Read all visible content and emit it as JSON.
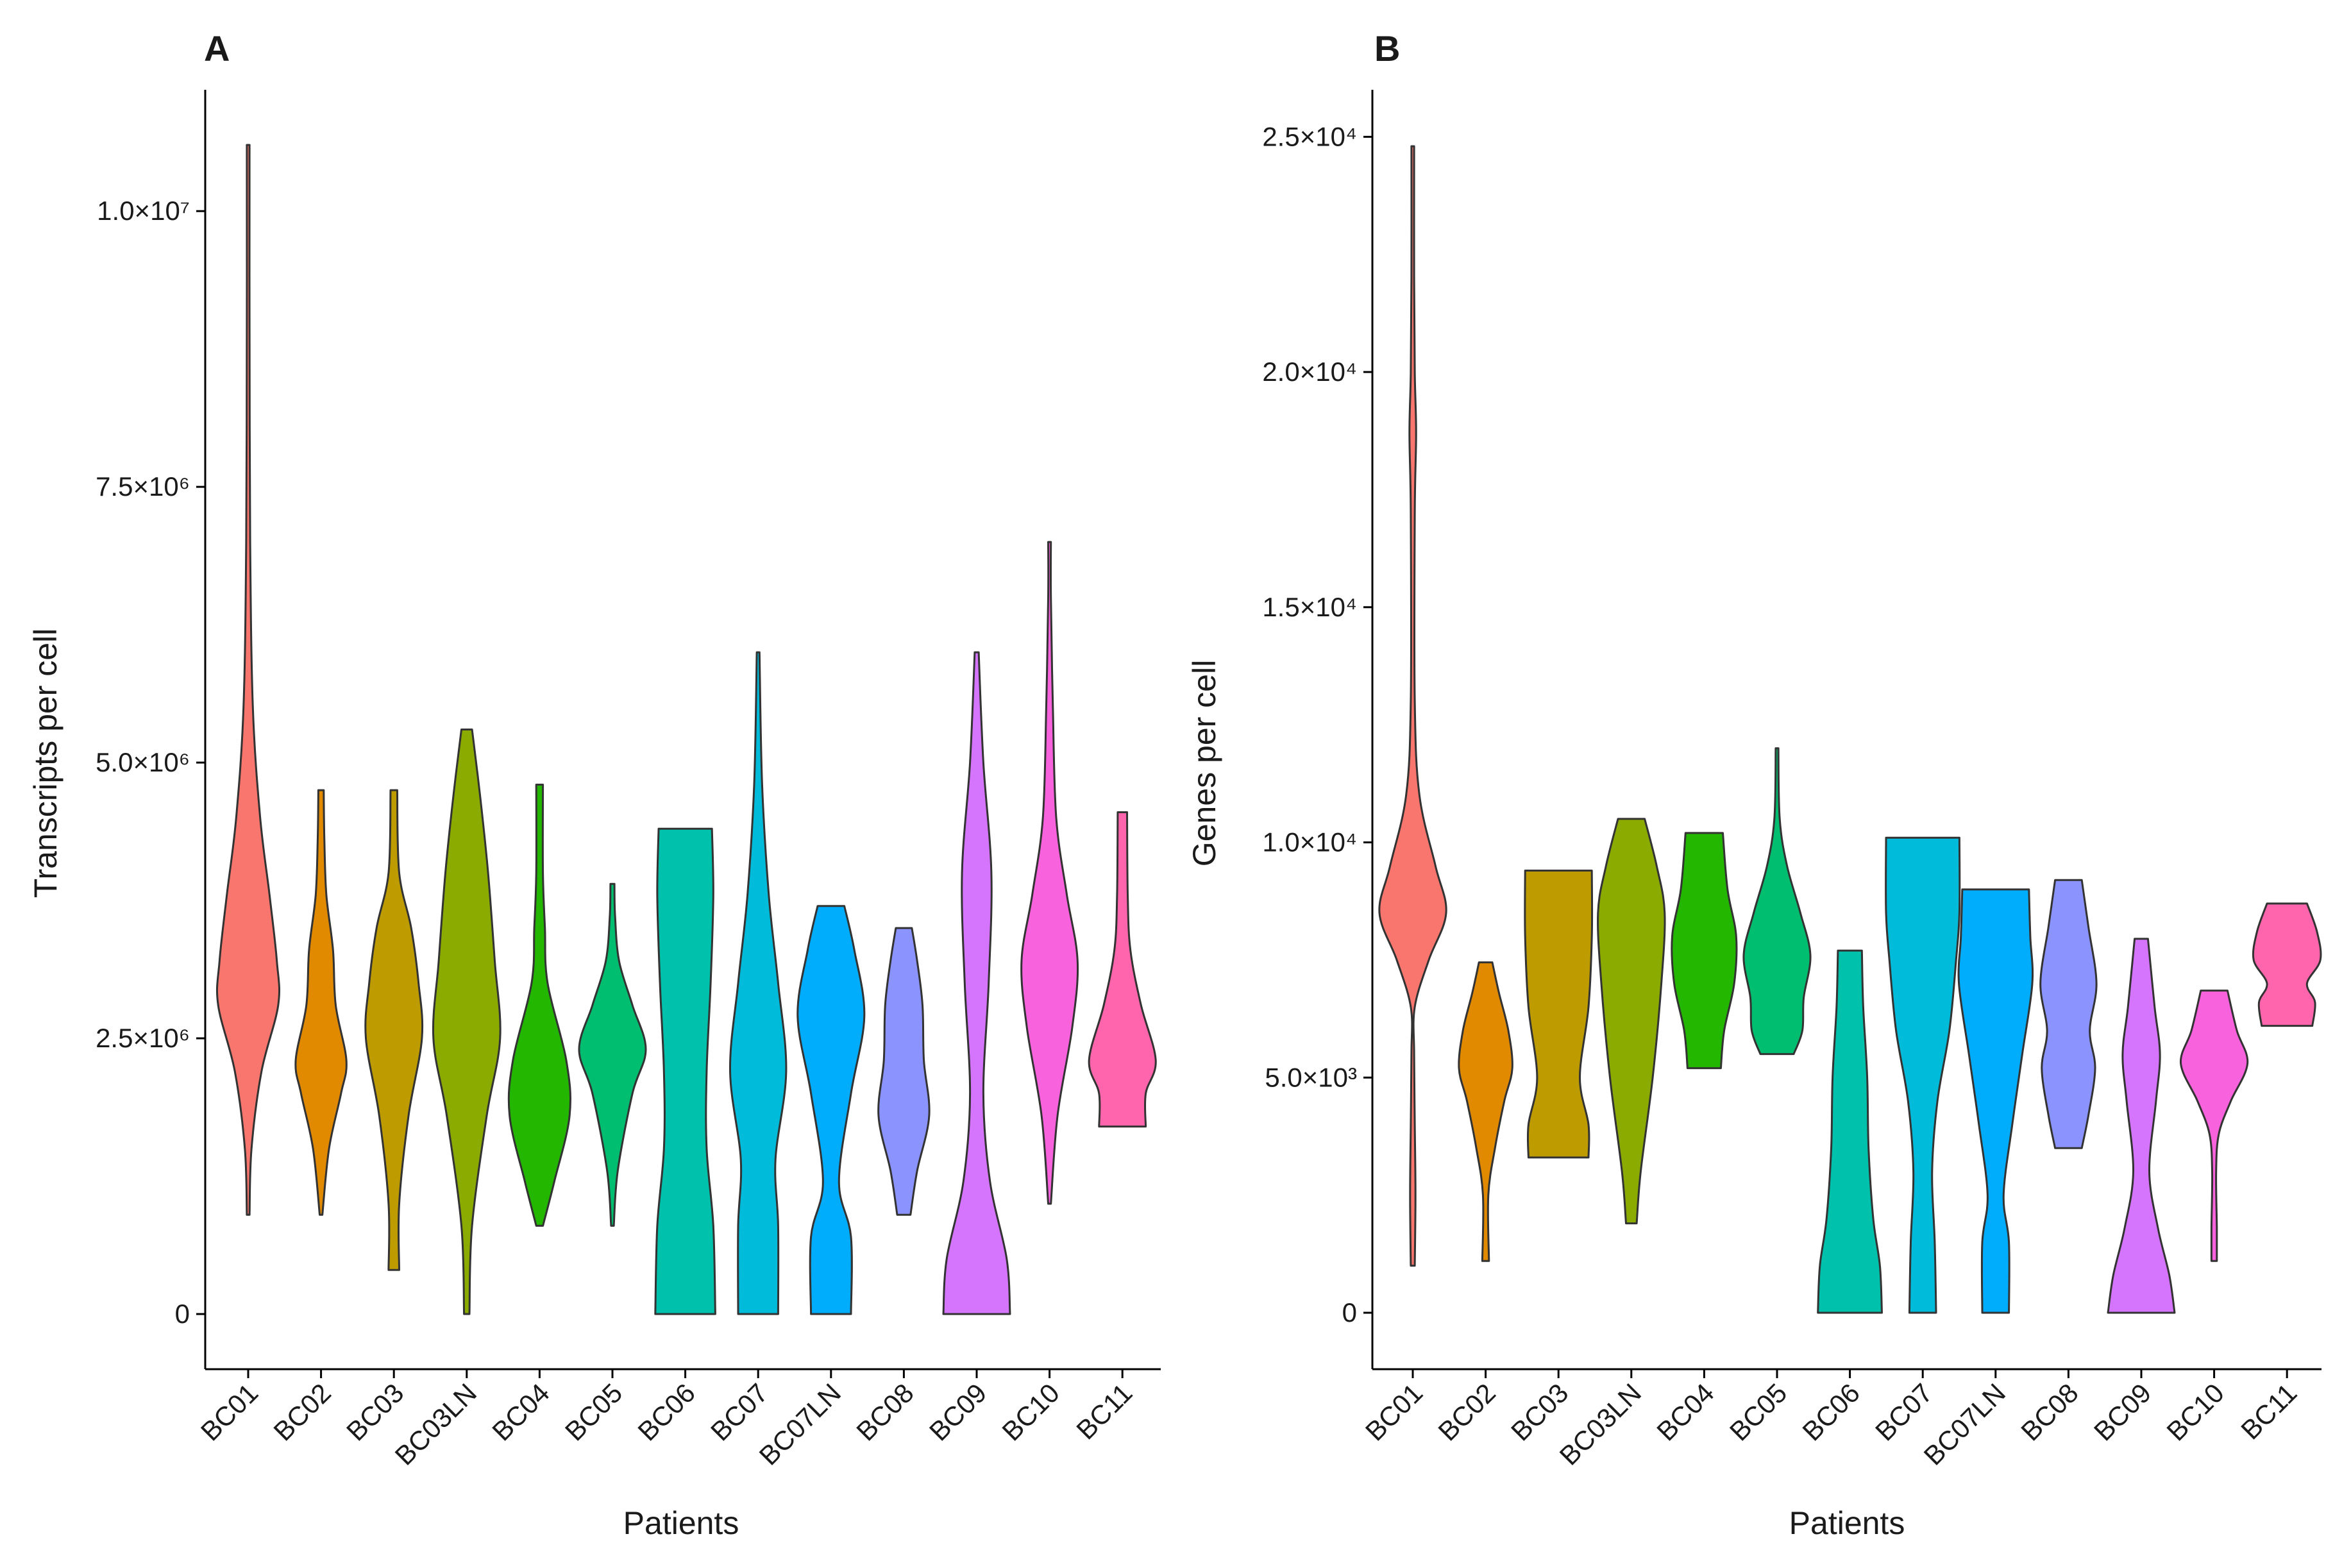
{
  "chart_data": [
    {
      "type": "violin",
      "panel": "A",
      "xlabel": "Patients",
      "ylabel": "Transcripts per cell",
      "ylim": [
        -500000,
        11100000
      ],
      "yticks": [
        0,
        2500000,
        5000000,
        7500000,
        10000000
      ],
      "ytick_labels": [
        "0",
        "2.5×10⁶",
        "5.0×10⁶",
        "7.5×10⁶",
        "1.0×10⁷"
      ],
      "categories": [
        "BC01",
        "BC02",
        "BC03",
        "BC03LN",
        "BC04",
        "BC05",
        "BC06",
        "BC07",
        "BC07LN",
        "BC08",
        "BC09",
        "BC10",
        "BC11"
      ],
      "colors": [
        "#F8766D",
        "#E18A00",
        "#BE9C00",
        "#8CAB00",
        "#24B700",
        "#00BE70",
        "#00C1AB",
        "#00BBDA",
        "#00ACFC",
        "#8B93FF",
        "#D575FE",
        "#F962DD",
        "#FF65AC"
      ],
      "violins": [
        {
          "name": "BC01",
          "min": 900000,
          "max": 10600000,
          "shape": [
            [
              900000,
              0.02
            ],
            [
              1500000,
              0.05
            ],
            [
              2200000,
              0.2
            ],
            [
              2800000,
              0.45
            ],
            [
              3200000,
              0.43
            ],
            [
              3800000,
              0.32
            ],
            [
              4500000,
              0.18
            ],
            [
              5500000,
              0.07
            ],
            [
              7000000,
              0.03
            ],
            [
              9000000,
              0.02
            ],
            [
              10600000,
              0.02
            ]
          ]
        },
        {
          "name": "BC02",
          "min": 900000,
          "max": 4750000,
          "shape": [
            [
              900000,
              0.02
            ],
            [
              1500000,
              0.12
            ],
            [
              2000000,
              0.3
            ],
            [
              2300000,
              0.38
            ],
            [
              2800000,
              0.22
            ],
            [
              3300000,
              0.18
            ],
            [
              3800000,
              0.08
            ],
            [
              4300000,
              0.05
            ],
            [
              4750000,
              0.04
            ]
          ]
        },
        {
          "name": "BC03",
          "min": 400000,
          "max": 4750000,
          "shape": [
            [
              400000,
              0.08
            ],
            [
              1000000,
              0.08
            ],
            [
              1800000,
              0.22
            ],
            [
              2500000,
              0.42
            ],
            [
              3000000,
              0.37
            ],
            [
              3500000,
              0.26
            ],
            [
              4000000,
              0.08
            ],
            [
              4750000,
              0.05
            ]
          ]
        },
        {
          "name": "BC03LN",
          "min": 0,
          "max": 5300000,
          "shape": [
            [
              0,
              0.04
            ],
            [
              800000,
              0.08
            ],
            [
              1800000,
              0.3
            ],
            [
              2500000,
              0.5
            ],
            [
              3200000,
              0.42
            ],
            [
              4000000,
              0.32
            ],
            [
              4700000,
              0.2
            ],
            [
              5300000,
              0.08
            ]
          ]
        },
        {
          "name": "BC04",
          "min": 800000,
          "max": 4800000,
          "shape": [
            [
              800000,
              0.05
            ],
            [
              1200000,
              0.22
            ],
            [
              1800000,
              0.45
            ],
            [
              2300000,
              0.4
            ],
            [
              3000000,
              0.12
            ],
            [
              3500000,
              0.08
            ],
            [
              4000000,
              0.05
            ],
            [
              4800000,
              0.05
            ]
          ]
        },
        {
          "name": "BC05",
          "min": 800000,
          "max": 3900000,
          "shape": [
            [
              800000,
              0.02
            ],
            [
              1300000,
              0.08
            ],
            [
              2000000,
              0.3
            ],
            [
              2400000,
              0.5
            ],
            [
              2800000,
              0.3
            ],
            [
              3200000,
              0.1
            ],
            [
              3600000,
              0.04
            ],
            [
              3900000,
              0.03
            ]
          ]
        },
        {
          "name": "BC06",
          "min": 0,
          "max": 4400000,
          "shape": [
            [
              0,
              0.45
            ],
            [
              800000,
              0.42
            ],
            [
              1500000,
              0.32
            ],
            [
              2200000,
              0.32
            ],
            [
              3000000,
              0.38
            ],
            [
              3800000,
              0.42
            ],
            [
              4400000,
              0.4
            ]
          ]
        },
        {
          "name": "BC07",
          "min": 0,
          "max": 6000000,
          "shape": [
            [
              0,
              0.3
            ],
            [
              800000,
              0.3
            ],
            [
              1400000,
              0.26
            ],
            [
              2200000,
              0.42
            ],
            [
              3000000,
              0.3
            ],
            [
              3800000,
              0.16
            ],
            [
              4800000,
              0.06
            ],
            [
              6000000,
              0.02
            ]
          ]
        },
        {
          "name": "BC07LN",
          "min": 0,
          "max": 3700000,
          "shape": [
            [
              0,
              0.3
            ],
            [
              700000,
              0.3
            ],
            [
              1200000,
              0.12
            ],
            [
              2000000,
              0.3
            ],
            [
              2700000,
              0.5
            ],
            [
              3300000,
              0.35
            ],
            [
              3700000,
              0.2
            ]
          ]
        },
        {
          "name": "BC08",
          "min": 900000,
          "max": 3500000,
          "shape": [
            [
              900000,
              0.1
            ],
            [
              1300000,
              0.2
            ],
            [
              1800000,
              0.38
            ],
            [
              2300000,
              0.3
            ],
            [
              2800000,
              0.28
            ],
            [
              3200000,
              0.2
            ],
            [
              3500000,
              0.12
            ]
          ]
        },
        {
          "name": "BC09",
          "min": 0,
          "max": 6000000,
          "shape": [
            [
              0,
              0.5
            ],
            [
              500000,
              0.45
            ],
            [
              1200000,
              0.2
            ],
            [
              2000000,
              0.1
            ],
            [
              3000000,
              0.18
            ],
            [
              4000000,
              0.22
            ],
            [
              5000000,
              0.1
            ],
            [
              6000000,
              0.03
            ]
          ]
        },
        {
          "name": "BC10",
          "min": 1000000,
          "max": 7000000,
          "shape": [
            [
              1000000,
              0.02
            ],
            [
              1800000,
              0.12
            ],
            [
              2600000,
              0.34
            ],
            [
              3200000,
              0.42
            ],
            [
              3800000,
              0.26
            ],
            [
              4500000,
              0.1
            ],
            [
              5500000,
              0.05
            ],
            [
              6500000,
              0.02
            ],
            [
              7000000,
              0.02
            ]
          ]
        },
        {
          "name": "BC11",
          "min": 1700000,
          "max": 4550000,
          "shape": [
            [
              1700000,
              0.35
            ],
            [
              2000000,
              0.35
            ],
            [
              2300000,
              0.5
            ],
            [
              2800000,
              0.28
            ],
            [
              3300000,
              0.12
            ],
            [
              3800000,
              0.08
            ],
            [
              4550000,
              0.07
            ]
          ]
        }
      ]
    },
    {
      "type": "violin",
      "panel": "B",
      "xlabel": "Patients",
      "ylabel": "Genes per cell",
      "ylim": [
        -1200,
        26000
      ],
      "yticks": [
        0,
        5000,
        10000,
        15000,
        20000,
        25000
      ],
      "ytick_labels": [
        "0",
        "5.0×10³",
        "1.0×10⁴",
        "1.5×10⁴",
        "2.0×10⁴",
        "2.5×10⁴"
      ],
      "categories": [
        "BC01",
        "BC02",
        "BC03",
        "BC03LN",
        "BC04",
        "BC05",
        "BC06",
        "BC07",
        "BC07LN",
        "BC08",
        "BC09",
        "BC10",
        "BC11"
      ],
      "colors": [
        "#F8766D",
        "#E18A00",
        "#BE9C00",
        "#8CAB00",
        "#24B700",
        "#00BE70",
        "#00C1AB",
        "#00BBDA",
        "#00ACFC",
        "#8B93FF",
        "#D575FE",
        "#F962DD",
        "#FF65AC"
      ],
      "violins": [
        {
          "name": "BC01",
          "min": 1000,
          "max": 24800,
          "shape": [
            [
              1000,
              0.03
            ],
            [
              2500,
              0.04
            ],
            [
              4000,
              0.03
            ],
            [
              5500,
              0.02
            ],
            [
              6500,
              0.03
            ],
            [
              7500,
              0.24
            ],
            [
              8500,
              0.5
            ],
            [
              9500,
              0.34
            ],
            [
              11000,
              0.1
            ],
            [
              13000,
              0.03
            ],
            [
              17000,
              0.03
            ],
            [
              18700,
              0.05
            ],
            [
              20000,
              0.03
            ],
            [
              22000,
              0.02
            ],
            [
              24800,
              0.02
            ]
          ]
        },
        {
          "name": "BC02",
          "min": 1100,
          "max": 7450,
          "shape": [
            [
              1100,
              0.05
            ],
            [
              2500,
              0.04
            ],
            [
              3500,
              0.14
            ],
            [
              4500,
              0.28
            ],
            [
              5200,
              0.4
            ],
            [
              6000,
              0.34
            ],
            [
              6800,
              0.2
            ],
            [
              7450,
              0.1
            ]
          ]
        },
        {
          "name": "BC03",
          "min": 3300,
          "max": 9400,
          "shape": [
            [
              3300,
              0.45
            ],
            [
              4000,
              0.45
            ],
            [
              5000,
              0.32
            ],
            [
              6500,
              0.45
            ],
            [
              8000,
              0.5
            ],
            [
              9400,
              0.5
            ]
          ]
        },
        {
          "name": "BC03LN",
          "min": 1900,
          "max": 10500,
          "shape": [
            [
              1900,
              0.08
            ],
            [
              3000,
              0.14
            ],
            [
              5000,
              0.32
            ],
            [
              7000,
              0.45
            ],
            [
              8500,
              0.5
            ],
            [
              9500,
              0.38
            ],
            [
              10500,
              0.2
            ]
          ]
        },
        {
          "name": "BC04",
          "min": 5200,
          "max": 10200,
          "shape": [
            [
              5200,
              0.25
            ],
            [
              6000,
              0.3
            ],
            [
              7000,
              0.45
            ],
            [
              8000,
              0.48
            ],
            [
              9000,
              0.35
            ],
            [
              10200,
              0.28
            ]
          ]
        },
        {
          "name": "BC05",
          "min": 5500,
          "max": 12000,
          "shape": [
            [
              5500,
              0.25
            ],
            [
              6000,
              0.38
            ],
            [
              6700,
              0.4
            ],
            [
              7600,
              0.5
            ],
            [
              8500,
              0.35
            ],
            [
              9500,
              0.15
            ],
            [
              10500,
              0.04
            ],
            [
              12000,
              0.02
            ]
          ]
        },
        {
          "name": "BC06",
          "min": 0,
          "max": 7700,
          "shape": [
            [
              0,
              0.48
            ],
            [
              1000,
              0.45
            ],
            [
              2000,
              0.35
            ],
            [
              3500,
              0.28
            ],
            [
              5000,
              0.26
            ],
            [
              6500,
              0.2
            ],
            [
              7700,
              0.18
            ]
          ]
        },
        {
          "name": "BC07",
          "min": 0,
          "max": 10100,
          "shape": [
            [
              0,
              0.2
            ],
            [
              1500,
              0.18
            ],
            [
              3000,
              0.14
            ],
            [
              4500,
              0.22
            ],
            [
              6000,
              0.4
            ],
            [
              7500,
              0.5
            ],
            [
              8500,
              0.55
            ],
            [
              10100,
              0.55
            ]
          ]
        },
        {
          "name": "BC07LN",
          "min": 0,
          "max": 9000,
          "shape": [
            [
              0,
              0.2
            ],
            [
              1500,
              0.2
            ],
            [
              2500,
              0.12
            ],
            [
              4000,
              0.25
            ],
            [
              5500,
              0.4
            ],
            [
              7000,
              0.55
            ],
            [
              8000,
              0.52
            ],
            [
              9000,
              0.5
            ]
          ]
        },
        {
          "name": "BC08",
          "min": 3500,
          "max": 9200,
          "shape": [
            [
              3500,
              0.2
            ],
            [
              4200,
              0.3
            ],
            [
              5200,
              0.4
            ],
            [
              6000,
              0.32
            ],
            [
              7000,
              0.42
            ],
            [
              8200,
              0.3
            ],
            [
              9200,
              0.2
            ]
          ]
        },
        {
          "name": "BC09",
          "min": 0,
          "max": 7950,
          "shape": [
            [
              0,
              0.5
            ],
            [
              800,
              0.42
            ],
            [
              1800,
              0.25
            ],
            [
              3000,
              0.12
            ],
            [
              4500,
              0.22
            ],
            [
              5500,
              0.28
            ],
            [
              6500,
              0.2
            ],
            [
              7950,
              0.1
            ]
          ]
        },
        {
          "name": "BC10",
          "min": 1100,
          "max": 6850,
          "shape": [
            [
              1100,
              0.04
            ],
            [
              1800,
              0.04
            ],
            [
              3000,
              0.03
            ],
            [
              3800,
              0.07
            ],
            [
              4500,
              0.25
            ],
            [
              5300,
              0.5
            ],
            [
              6000,
              0.34
            ],
            [
              6850,
              0.2
            ]
          ]
        },
        {
          "name": "BC11",
          "min": 6100,
          "max": 8700,
          "shape": [
            [
              6100,
              0.38
            ],
            [
              6600,
              0.42
            ],
            [
              7000,
              0.3
            ],
            [
              7500,
              0.5
            ],
            [
              8100,
              0.45
            ],
            [
              8700,
              0.3
            ]
          ]
        }
      ]
    }
  ]
}
